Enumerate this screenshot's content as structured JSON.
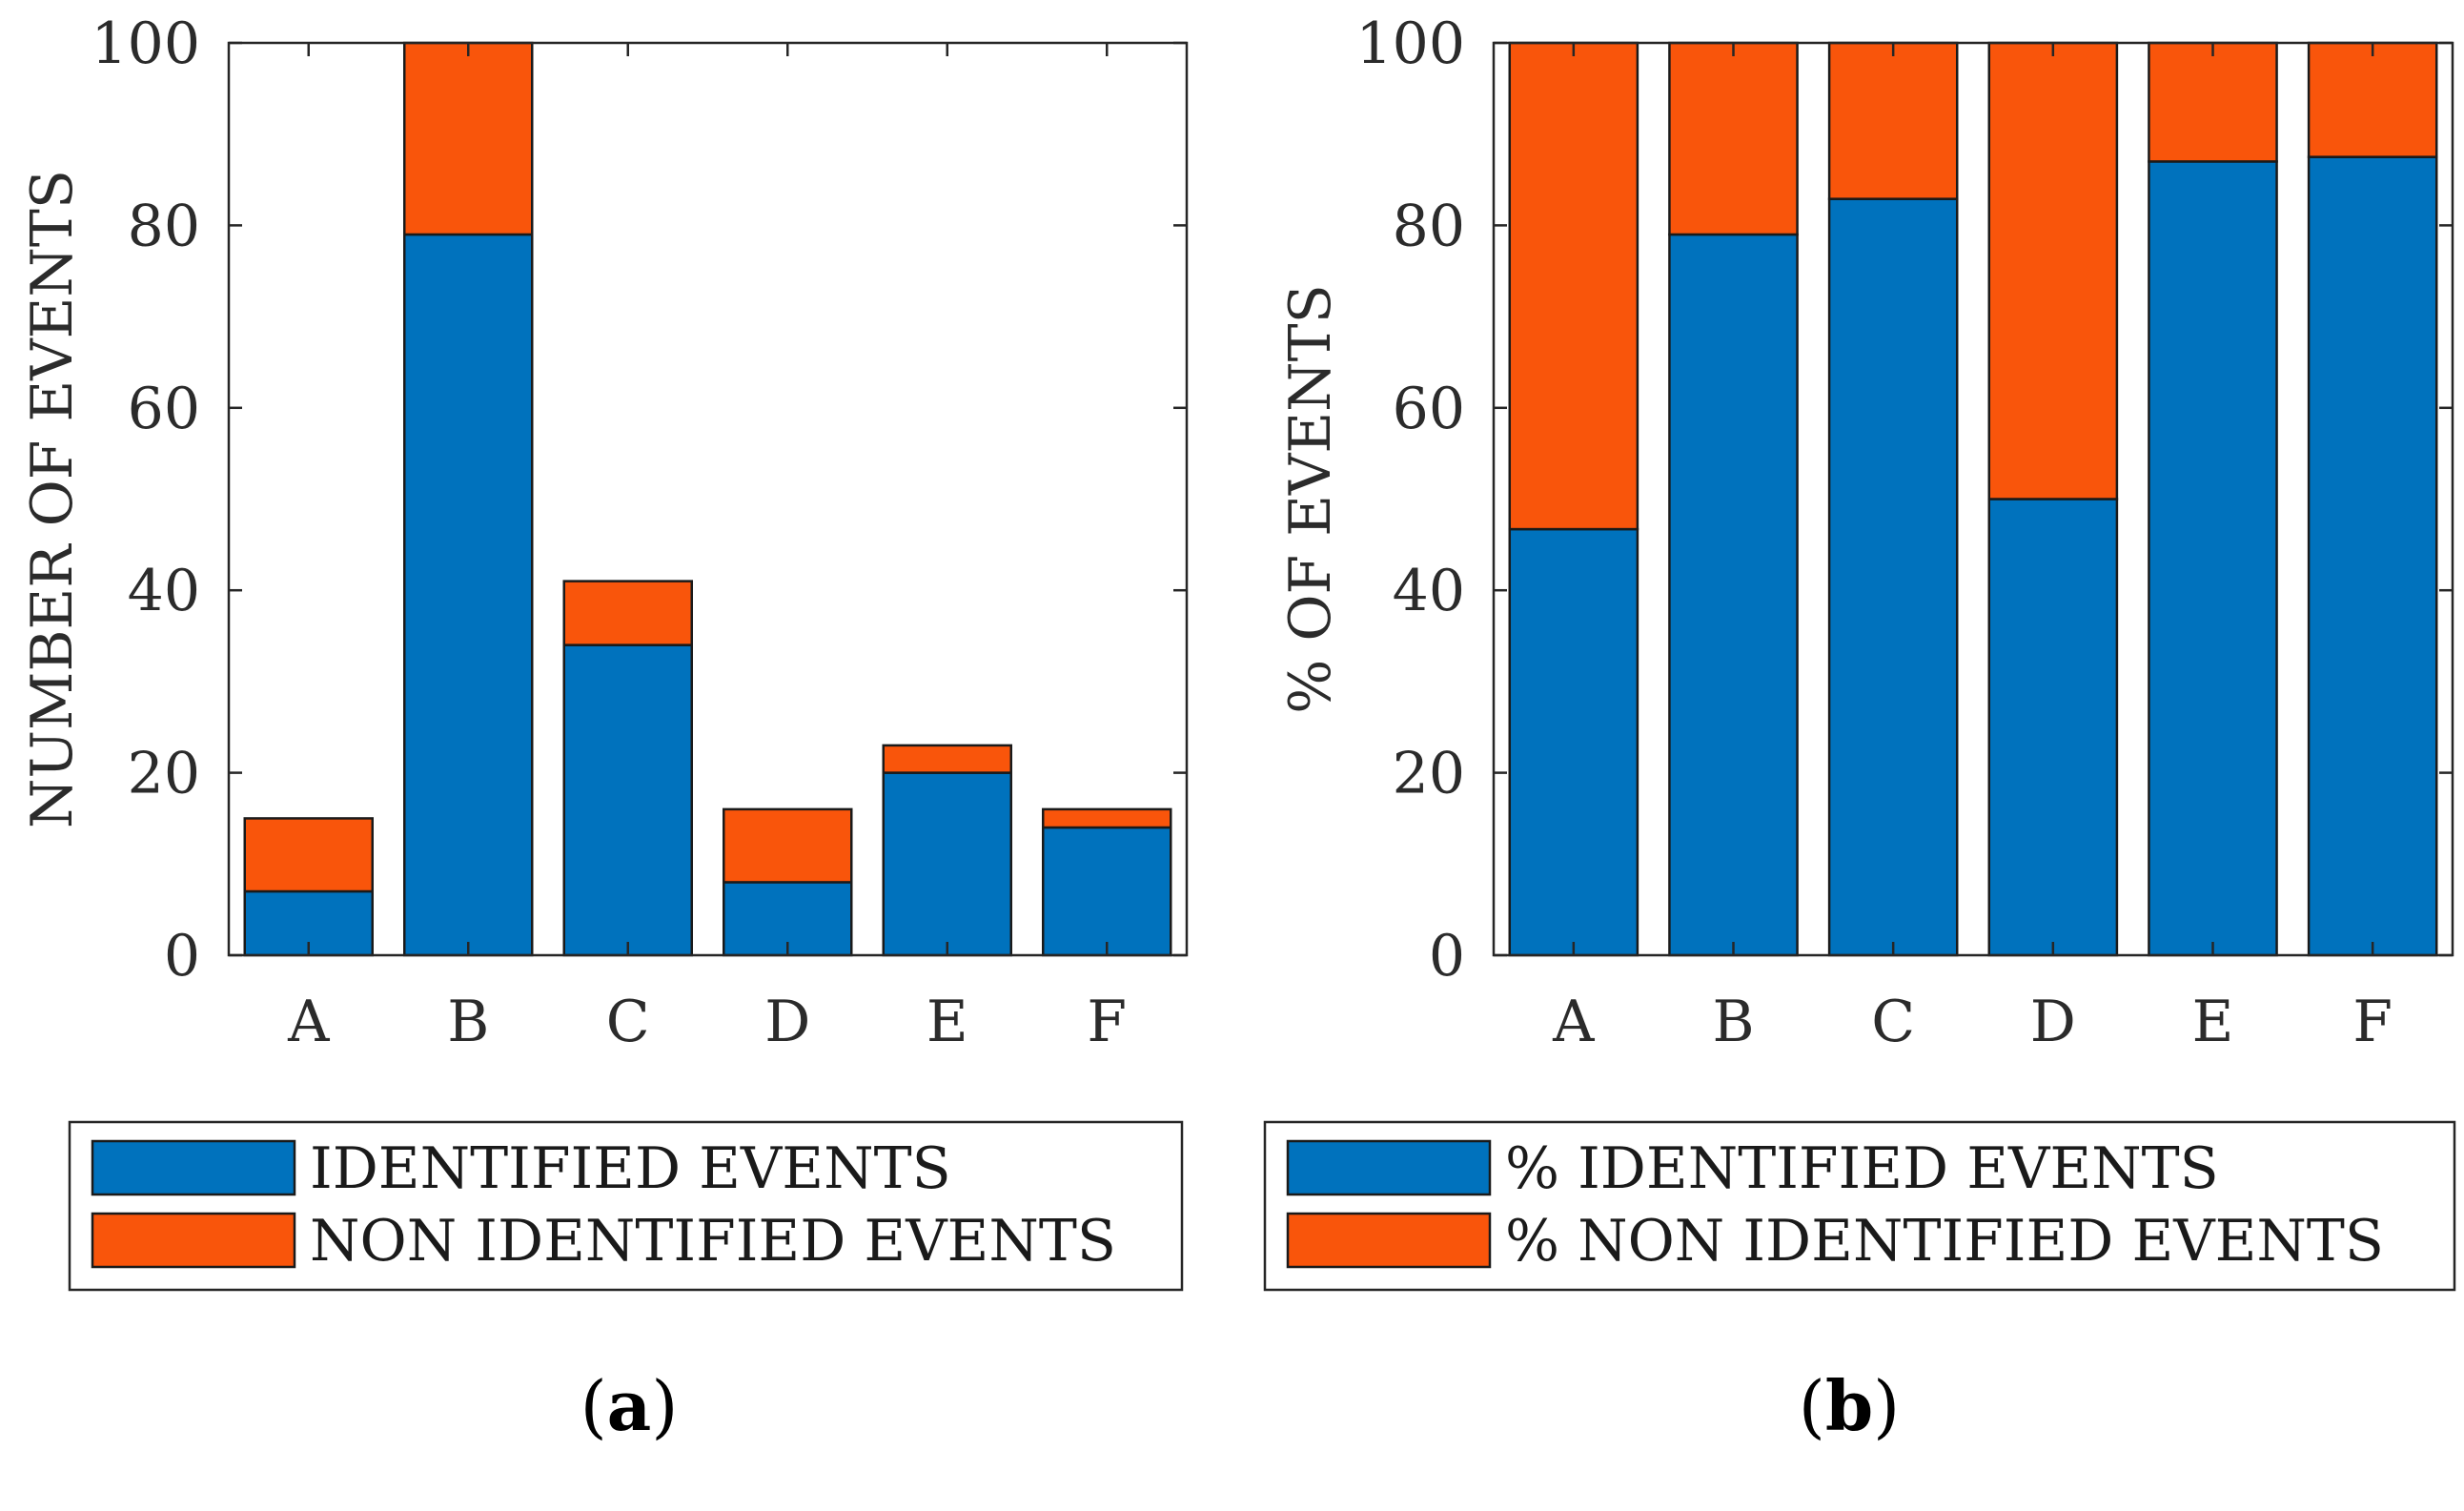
{
  "chart_data": [
    {
      "type": "bar",
      "stacked": true,
      "panel_label": "a",
      "categories": [
        "A",
        "B",
        "C",
        "D",
        "E",
        "F"
      ],
      "series": [
        {
          "name": "IDENTIFIED EVENTS",
          "color": "#0072BD",
          "values": [
            7,
            79,
            34,
            8,
            20,
            14
          ]
        },
        {
          "name": "NON IDENTIFIED EVENTS",
          "color": "#F9550B",
          "values": [
            8,
            21,
            7,
            8,
            3,
            2
          ]
        }
      ],
      "xlabel": "",
      "ylabel": "NUMBER OF EVENTS",
      "ylim": [
        0,
        100
      ],
      "yticks": [
        0,
        20,
        40,
        60,
        80,
        100
      ],
      "legend_position": "bottom"
    },
    {
      "type": "bar",
      "stacked": true,
      "panel_label": "b",
      "categories": [
        "A",
        "B",
        "C",
        "D",
        "E",
        "F"
      ],
      "series": [
        {
          "name": "% IDENTIFIED EVENTS",
          "color": "#0072BD",
          "values": [
            46.7,
            79,
            82.9,
            50,
            87,
            87.5
          ]
        },
        {
          "name": "% NON IDENTIFIED EVENTS",
          "color": "#F9550B",
          "values": [
            53.3,
            21,
            17.1,
            50,
            13,
            12.5
          ]
        }
      ],
      "xlabel": "",
      "ylabel": "% OF EVENTS",
      "ylim": [
        0,
        100
      ],
      "yticks": [
        0,
        20,
        40,
        60,
        80,
        100
      ],
      "legend_position": "bottom"
    }
  ]
}
